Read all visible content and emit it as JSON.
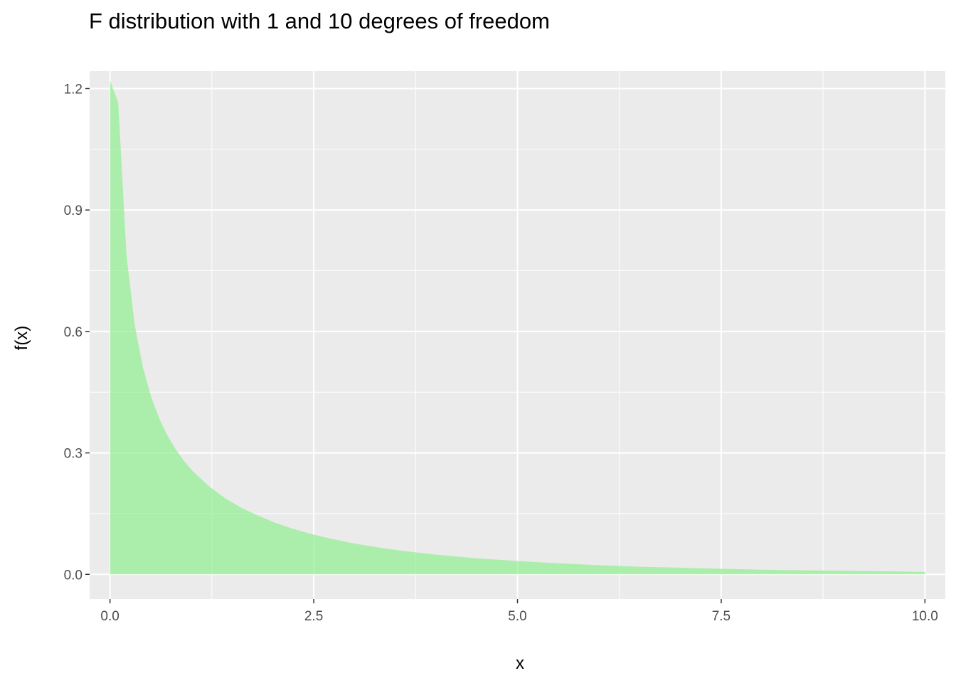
{
  "chart_data": {
    "type": "area",
    "title": "F distribution with 1 and 10 degrees of freedom",
    "xlabel": "x",
    "ylabel": "f(x)",
    "xlim": [
      -0.25,
      10.25
    ],
    "ylim": [
      -0.061,
      1.243
    ],
    "x_ticks": [
      {
        "value": 0.0,
        "label": "0.0"
      },
      {
        "value": 2.5,
        "label": "2.5"
      },
      {
        "value": 5.0,
        "label": "5.0"
      },
      {
        "value": 7.5,
        "label": "7.5"
      },
      {
        "value": 10.0,
        "label": "10.0"
      }
    ],
    "y_ticks": [
      {
        "value": 0.0,
        "label": "0.0"
      },
      {
        "value": 0.3,
        "label": "0.3"
      },
      {
        "value": 0.6,
        "label": "0.6"
      },
      {
        "value": 0.9,
        "label": "0.9"
      },
      {
        "value": 1.2,
        "label": "1.2"
      }
    ],
    "x_minor": [
      1.25,
      3.75,
      6.25,
      8.75
    ],
    "y_minor": [
      0.15,
      0.45,
      0.75,
      1.05
    ],
    "grid": true,
    "legend": "none",
    "fill_color": "#90ee90",
    "fill_opacity": 0.7,
    "panel_background": "#ebebeb",
    "x": [
      0,
      0.101,
      0.202,
      0.303,
      0.404,
      0.505,
      0.606,
      0.707,
      0.808,
      0.909,
      1.01,
      1.212,
      1.414,
      1.616,
      1.818,
      2.02,
      2.222,
      2.424,
      2.626,
      2.828,
      3.03,
      3.333,
      3.636,
      3.939,
      4.242,
      4.545,
      4.848,
      5.152,
      5.455,
      5.758,
      6.061,
      6.465,
      6.869,
      7.273,
      7.677,
      8.081,
      8.485,
      8.889,
      9.293,
      9.697,
      10.0
    ],
    "y": [
      1.22,
      1.165,
      0.789,
      0.616,
      0.511,
      0.438,
      0.384,
      0.342,
      0.308,
      0.28,
      0.256,
      0.218,
      0.188,
      0.164,
      0.145,
      0.128,
      0.114,
      0.102,
      0.092,
      0.083,
      0.075,
      0.065,
      0.057,
      0.05,
      0.044,
      0.039,
      0.035,
      0.031,
      0.028,
      0.025,
      0.022,
      0.019,
      0.017,
      0.015,
      0.013,
      0.011,
      0.01,
      0.009,
      0.008,
      0.007,
      0.006
    ]
  }
}
